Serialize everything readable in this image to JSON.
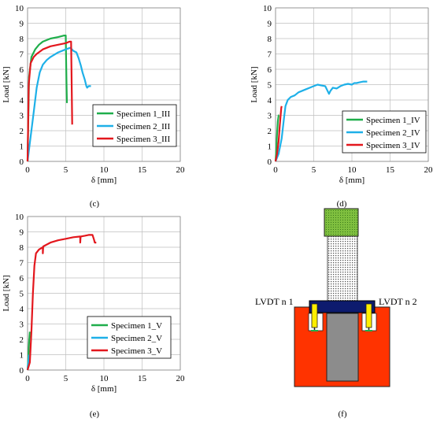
{
  "colors": {
    "specimen1": "#1fae4b",
    "specimen2": "#1eb0e8",
    "specimen3": "#e3171d",
    "grid": "#bfbfbf",
    "setup_block": "#ff3300",
    "setup_plate": "#0d1b6e",
    "setup_cap": "#7fbf3f",
    "setup_core": "#8c8c8c",
    "setup_lvdt": "#ffee00"
  },
  "chart_data": [
    {
      "id": "c",
      "panel_label": "(c)",
      "type": "line",
      "xlabel": "δ [mm]",
      "ylabel": "Load [kN]",
      "xlim": [
        0,
        20
      ],
      "ylim": [
        0,
        10
      ],
      "xticks": [
        0,
        5,
        10,
        15,
        20
      ],
      "yticks": [
        0,
        1,
        2,
        3,
        4,
        5,
        6,
        7,
        8,
        9,
        10
      ],
      "grid": true,
      "legend_position": "bottom-right",
      "series": [
        {
          "name": "Specimen 1_III",
          "color": "specimen1",
          "x": [
            0,
            0.2,
            0.5,
            1.0,
            1.5,
            2.0,
            3.0,
            4.0,
            4.8,
            5.0,
            5.05,
            5.1,
            5.15
          ],
          "y": [
            0,
            5.5,
            6.8,
            7.3,
            7.6,
            7.8,
            8.0,
            8.1,
            8.2,
            8.2,
            6.5,
            5.0,
            3.8
          ]
        },
        {
          "name": "Specimen 2_III",
          "color": "specimen2",
          "x": [
            0,
            0.3,
            0.8,
            1.2,
            1.6,
            2.0,
            2.5,
            3.0,
            4.0,
            5.0,
            5.6,
            6.0,
            6.4,
            6.7,
            7.0,
            7.2,
            7.5,
            7.7,
            7.8,
            8.0,
            8.3
          ],
          "y": [
            0,
            1.2,
            3.2,
            4.8,
            5.8,
            6.3,
            6.6,
            6.8,
            7.1,
            7.3,
            7.4,
            7.2,
            7.1,
            6.7,
            6.2,
            5.8,
            5.3,
            4.9,
            4.8,
            4.9,
            4.9
          ]
        },
        {
          "name": "Specimen 3_III",
          "color": "specimen3",
          "x": [
            0,
            0.15,
            0.4,
            0.8,
            1.2,
            2.0,
            3.0,
            4.0,
            5.0,
            5.5,
            5.7,
            5.75,
            5.8,
            5.85
          ],
          "y": [
            0,
            5.0,
            6.4,
            6.8,
            7.0,
            7.3,
            7.5,
            7.6,
            7.7,
            7.8,
            7.8,
            6.0,
            4.0,
            2.4
          ]
        }
      ]
    },
    {
      "id": "d",
      "panel_label": "(d)",
      "type": "line",
      "xlabel": "δ [mm]",
      "ylabel": "Load [kN]",
      "xlim": [
        0,
        20
      ],
      "ylim": [
        0,
        10
      ],
      "xticks": [
        0,
        5,
        10,
        15,
        20
      ],
      "yticks": [
        0,
        1,
        2,
        3,
        4,
        5,
        6,
        7,
        8,
        9,
        10
      ],
      "grid": true,
      "legend_position": "bottom-right",
      "series": [
        {
          "name": "Specimen 1_IV",
          "color": "specimen1",
          "x": [
            0,
            0.1,
            0.2,
            0.3,
            0.4,
            0.45
          ],
          "y": [
            0,
            0.8,
            1.8,
            2.6,
            3.0,
            3.0
          ]
        },
        {
          "name": "Specimen 2_IV",
          "color": "specimen2",
          "x": [
            0,
            0.4,
            0.8,
            1.1,
            1.3,
            1.6,
            2.0,
            2.5,
            3.0,
            3.5,
            4.0,
            4.5,
            5.0,
            5.5,
            6.0,
            6.5,
            6.8,
            7.0,
            7.2,
            7.5,
            8.0,
            8.5,
            9.0,
            9.5,
            10.0,
            10.3,
            10.6,
            11.0,
            11.5,
            12.0
          ],
          "y": [
            0,
            0.5,
            1.5,
            2.8,
            3.6,
            4.0,
            4.2,
            4.3,
            4.5,
            4.6,
            4.7,
            4.8,
            4.9,
            5.0,
            4.95,
            4.9,
            4.6,
            4.4,
            4.6,
            4.8,
            4.75,
            4.9,
            5.0,
            5.05,
            5.0,
            5.1,
            5.1,
            5.15,
            5.2,
            5.2
          ]
        },
        {
          "name": "Specimen 3_IV",
          "color": "specimen3",
          "x": [
            0,
            0.2,
            0.4,
            0.55,
            0.65,
            0.75,
            0.8
          ],
          "y": [
            0,
            0.5,
            1.3,
            2.3,
            2.9,
            3.5,
            3.6
          ]
        }
      ]
    },
    {
      "id": "e",
      "panel_label": "(e)",
      "type": "line",
      "xlabel": "δ [mm]",
      "ylabel": "Load [kN]",
      "xlim": [
        0,
        20
      ],
      "ylim": [
        0,
        10
      ],
      "xticks": [
        0,
        5,
        10,
        15,
        20
      ],
      "yticks": [
        0,
        1,
        2,
        3,
        4,
        5,
        6,
        7,
        8,
        9,
        10
      ],
      "grid": true,
      "legend_position": "bottom-right",
      "series": [
        {
          "name": "Specimen 1_V",
          "color": "specimen1",
          "x": [
            0,
            0.1,
            0.2,
            0.3
          ],
          "y": [
            0,
            0.8,
            1.8,
            2.5
          ]
        },
        {
          "name": "Specimen 2_V",
          "color": "specimen2",
          "x": [
            0,
            0.1,
            0.2
          ],
          "y": [
            0,
            0.5,
            1.0
          ]
        },
        {
          "name": "Specimen 3_V",
          "color": "specimen3",
          "x": [
            0,
            0.3,
            0.5,
            0.7,
            0.9,
            1.1,
            1.5,
            2.0,
            2.0,
            2.05,
            3.0,
            4.0,
            5.0,
            6.0,
            6.9,
            6.9,
            6.95,
            7.5,
            8.0,
            8.5,
            8.7,
            8.8,
            9.0
          ],
          "y": [
            0,
            0.5,
            2.5,
            5.0,
            6.8,
            7.6,
            7.85,
            8.0,
            7.6,
            8.05,
            8.3,
            8.45,
            8.55,
            8.65,
            8.7,
            8.3,
            8.7,
            8.75,
            8.8,
            8.8,
            8.5,
            8.3,
            8.3
          ]
        }
      ]
    }
  ],
  "figure_f": {
    "panel_label": "(f)",
    "lvdt_left": "LVDT n 1",
    "lvdt_right": "LVDT n 2"
  }
}
